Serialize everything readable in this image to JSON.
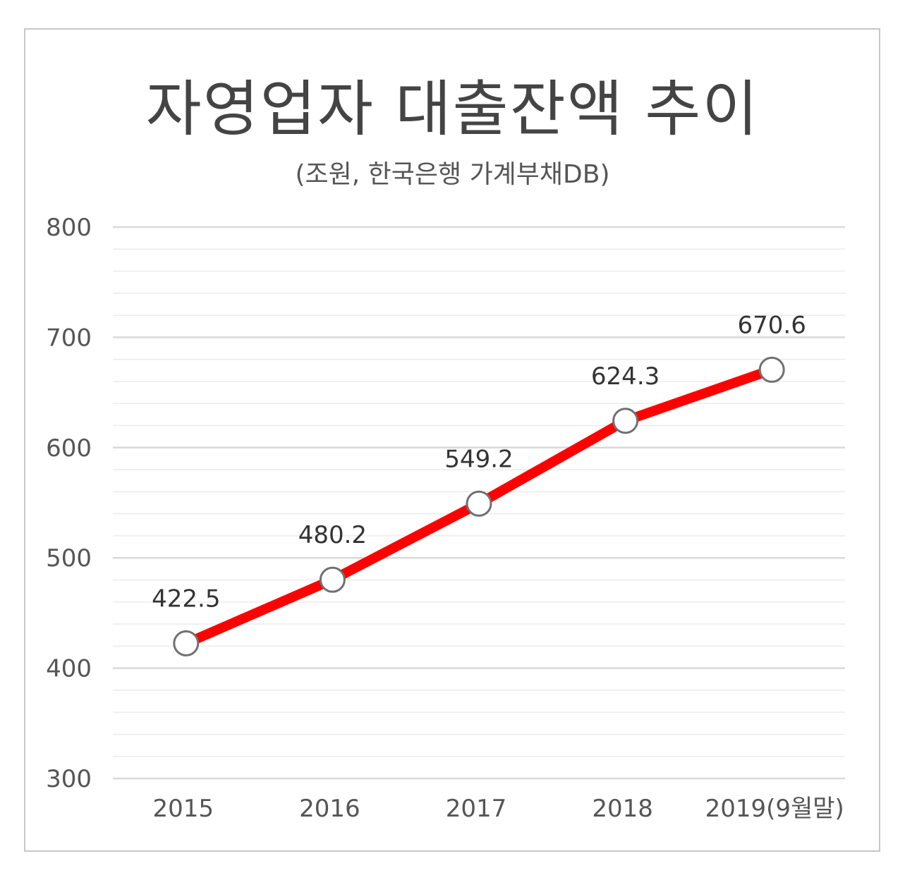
{
  "chart_data": {
    "type": "line",
    "title": "자영업자 대출잔액 추이",
    "subtitle": "(조원, 한국은행 가계부채DB)",
    "categories": [
      "2015",
      "2016",
      "2017",
      "2018",
      "2019(9월말)"
    ],
    "series": [
      {
        "values": [
          422.5,
          480.2,
          549.2,
          624.3,
          670.6
        ],
        "labels": [
          "422.5",
          "480.2",
          "549.2",
          "624.3",
          "670.6"
        ]
      }
    ],
    "ylim": [
      300,
      800
    ],
    "yticks": [
      "300",
      "400",
      "500",
      "600",
      "700",
      "800"
    ],
    "grid": true,
    "legend": "none",
    "colors": {
      "line": "#ff0000",
      "marker_fill": "#ffffff",
      "marker_stroke": "#707070",
      "grid": "#d9d9d9",
      "text": "#444444"
    }
  }
}
